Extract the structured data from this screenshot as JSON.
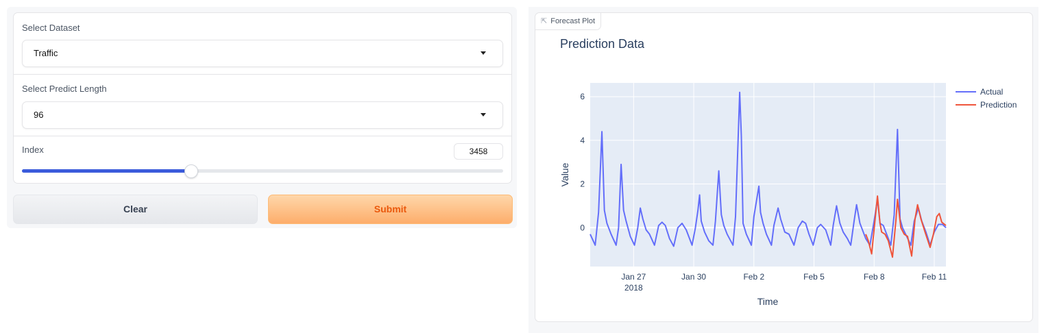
{
  "form": {
    "dataset": {
      "label": "Select Dataset",
      "value": "Traffic"
    },
    "predict_length": {
      "label": "Select Predict Length",
      "value": "96"
    },
    "index": {
      "label": "Index",
      "value": "3458",
      "slider_fraction": 0.35
    },
    "clear_label": "Clear",
    "submit_label": "Submit"
  },
  "plot_panel": {
    "tab_label": "Forecast Plot",
    "icon": "chart-icon"
  },
  "colors": {
    "accent": "#3b5bdb",
    "submit_text": "#ea580c",
    "actual": "#636efa",
    "prediction": "#ef553b",
    "plot_bg": "#e5ecf6"
  },
  "chart_data": {
    "type": "line",
    "title": "Prediction Data",
    "xlabel": "Time",
    "ylabel": "Value",
    "xlim": [
      "2018-01-24 20:00",
      "2018-02-11 14:00"
    ],
    "ylim": [
      -1.78,
      6.63
    ],
    "x_ticks": [
      {
        "date": "2018-01-27 00:00",
        "label": "Jan 27",
        "sublabel": "2018"
      },
      {
        "date": "2018-01-30 00:00",
        "label": "Jan 30"
      },
      {
        "date": "2018-02-02 00:00",
        "label": "Feb 2"
      },
      {
        "date": "2018-02-05 00:00",
        "label": "Feb 5"
      },
      {
        "date": "2018-02-08 00:00",
        "label": "Feb 8"
      },
      {
        "date": "2018-02-11 00:00",
        "label": "Feb 11"
      }
    ],
    "y_ticks": [
      0,
      2,
      4,
      6
    ],
    "grid": true,
    "legend": "top-right",
    "series": [
      {
        "name": "Actual",
        "color": "#636efa",
        "points": [
          [
            "2018-01-24 20:00",
            -0.3
          ],
          [
            "2018-01-25 02:00",
            -0.8
          ],
          [
            "2018-01-25 06:00",
            0.7
          ],
          [
            "2018-01-25 10:00",
            4.4
          ],
          [
            "2018-01-25 13:00",
            0.8
          ],
          [
            "2018-01-25 16:00",
            0.2
          ],
          [
            "2018-01-25 21:00",
            -0.3
          ],
          [
            "2018-01-26 03:00",
            -0.8
          ],
          [
            "2018-01-26 06:00",
            0
          ],
          [
            "2018-01-26 09:00",
            2.9
          ],
          [
            "2018-01-26 12:00",
            0.8
          ],
          [
            "2018-01-26 15:00",
            0.3
          ],
          [
            "2018-01-26 20:00",
            -0.4
          ],
          [
            "2018-01-27 01:00",
            -0.8
          ],
          [
            "2018-01-27 05:00",
            0
          ],
          [
            "2018-01-27 08:00",
            0.9
          ],
          [
            "2018-01-27 11:00",
            0.4
          ],
          [
            "2018-01-27 15:00",
            -0.1
          ],
          [
            "2018-01-27 19:00",
            -0.3
          ],
          [
            "2018-01-28 01:00",
            -0.8
          ],
          [
            "2018-01-28 06:00",
            0.1
          ],
          [
            "2018-01-28 10:00",
            0.25
          ],
          [
            "2018-01-28 14:00",
            0.1
          ],
          [
            "2018-01-28 19:00",
            -0.5
          ],
          [
            "2018-01-29 00:00",
            -0.85
          ],
          [
            "2018-01-29 05:00",
            0
          ],
          [
            "2018-01-29 10:00",
            0.2
          ],
          [
            "2018-01-29 15:00",
            -0.1
          ],
          [
            "2018-01-29 22:00",
            -0.8
          ],
          [
            "2018-01-30 02:00",
            0
          ],
          [
            "2018-01-30 05:00",
            0.8
          ],
          [
            "2018-01-30 07:00",
            1.5
          ],
          [
            "2018-01-30 09:00",
            0.3
          ],
          [
            "2018-01-30 13:00",
            -0.2
          ],
          [
            "2018-01-30 18:00",
            -0.6
          ],
          [
            "2018-01-30 23:00",
            -0.8
          ],
          [
            "2018-01-31 02:00",
            0.3
          ],
          [
            "2018-01-31 06:00",
            2.6
          ],
          [
            "2018-01-31 09:00",
            0.6
          ],
          [
            "2018-01-31 12:00",
            0.1
          ],
          [
            "2018-01-31 16:00",
            -0.3
          ],
          [
            "2018-01-31 23:00",
            -0.8
          ],
          [
            "2018-02-01 02:00",
            0.5
          ],
          [
            "2018-02-01 07:00",
            6.2
          ],
          [
            "2018-02-01 09:00",
            4.2
          ],
          [
            "2018-02-01 11:00",
            0.2
          ],
          [
            "2018-02-01 15:00",
            -0.3
          ],
          [
            "2018-02-01 21:00",
            -0.8
          ],
          [
            "2018-02-02 00:00",
            0.5
          ],
          [
            "2018-02-02 06:00",
            1.9
          ],
          [
            "2018-02-02 08:00",
            0.7
          ],
          [
            "2018-02-02 11:00",
            0.2
          ],
          [
            "2018-02-02 15:00",
            -0.3
          ],
          [
            "2018-02-02 21:00",
            -0.8
          ],
          [
            "2018-02-03 00:00",
            0.1
          ],
          [
            "2018-02-03 05:00",
            0.9
          ],
          [
            "2018-02-03 08:00",
            0.4
          ],
          [
            "2018-02-03 13:00",
            -0.2
          ],
          [
            "2018-02-03 18:00",
            -0.3
          ],
          [
            "2018-02-04 00:00",
            -0.8
          ],
          [
            "2018-02-04 05:00",
            0
          ],
          [
            "2018-02-04 10:00",
            0.3
          ],
          [
            "2018-02-04 14:00",
            0.2
          ],
          [
            "2018-02-04 18:00",
            -0.3
          ],
          [
            "2018-02-04 23:00",
            -0.8
          ],
          [
            "2018-02-05 04:00",
            0
          ],
          [
            "2018-02-05 08:00",
            0.15
          ],
          [
            "2018-02-05 14:00",
            -0.1
          ],
          [
            "2018-02-05 20:00",
            -0.8
          ],
          [
            "2018-02-05 23:00",
            0.1
          ],
          [
            "2018-02-06 03:00",
            1.0
          ],
          [
            "2018-02-06 07:00",
            0.2
          ],
          [
            "2018-02-06 11:00",
            -0.2
          ],
          [
            "2018-02-06 16:00",
            -0.5
          ],
          [
            "2018-02-06 20:00",
            -0.8
          ],
          [
            "2018-02-07 00:00",
            0.3
          ],
          [
            "2018-02-07 03:00",
            1.05
          ],
          [
            "2018-02-07 07:00",
            0.2
          ],
          [
            "2018-02-07 14:00",
            -0.5
          ],
          [
            "2018-02-07 19:00",
            -0.8
          ],
          [
            "2018-02-08 00:00",
            0.3
          ],
          [
            "2018-02-08 04:00",
            1.3
          ],
          [
            "2018-02-08 07:00",
            0.2
          ],
          [
            "2018-02-08 11:00",
            0.1
          ],
          [
            "2018-02-08 15:00",
            -0.3
          ],
          [
            "2018-02-08 20:00",
            -0.8
          ],
          [
            "2018-02-09 00:00",
            0.6
          ],
          [
            "2018-02-09 04:00",
            4.5
          ],
          [
            "2018-02-09 07:00",
            0.4
          ],
          [
            "2018-02-09 10:00",
            0
          ],
          [
            "2018-02-09 15:00",
            -0.4
          ],
          [
            "2018-02-09 20:00",
            -0.8
          ],
          [
            "2018-02-10 00:00",
            0.3
          ],
          [
            "2018-02-10 05:00",
            0.9
          ],
          [
            "2018-02-10 09:00",
            0.3
          ],
          [
            "2018-02-10 14:00",
            -0.2
          ],
          [
            "2018-02-10 19:00",
            -0.8
          ],
          [
            "2018-02-11 00:00",
            -0.2
          ],
          [
            "2018-02-11 05:00",
            0.15
          ],
          [
            "2018-02-11 10:00",
            0.15
          ],
          [
            "2018-02-11 14:00",
            0.0
          ]
        ]
      },
      {
        "name": "Prediction",
        "color": "#ef553b",
        "points": [
          [
            "2018-02-07 14:00",
            -0.3
          ],
          [
            "2018-02-07 17:00",
            -0.6
          ],
          [
            "2018-02-07 21:00",
            -1.2
          ],
          [
            "2018-02-08 01:00",
            0.3
          ],
          [
            "2018-02-08 04:00",
            1.45
          ],
          [
            "2018-02-08 07:00",
            0.2
          ],
          [
            "2018-02-08 09:00",
            -0.2
          ],
          [
            "2018-02-08 13:00",
            -0.3
          ],
          [
            "2018-02-08 17:00",
            -0.6
          ],
          [
            "2018-02-08 22:00",
            -1.35
          ],
          [
            "2018-02-09 02:00",
            0.3
          ],
          [
            "2018-02-09 04:00",
            1.3
          ],
          [
            "2018-02-09 08:00",
            0
          ],
          [
            "2018-02-09 12:00",
            -0.3
          ],
          [
            "2018-02-09 16:00",
            -0.4
          ],
          [
            "2018-02-09 21:00",
            -1.3
          ],
          [
            "2018-02-10 01:00",
            0.4
          ],
          [
            "2018-02-10 04:00",
            1.05
          ],
          [
            "2018-02-10 08:00",
            0.4
          ],
          [
            "2018-02-10 13:00",
            -0.2
          ],
          [
            "2018-02-10 19:00",
            -0.9
          ],
          [
            "2018-02-10 23:00",
            -0.3
          ],
          [
            "2018-02-11 03:00",
            0.5
          ],
          [
            "2018-02-11 06:00",
            0.65
          ],
          [
            "2018-02-11 09:00",
            0.25
          ],
          [
            "2018-02-11 14:00",
            0.1
          ]
        ]
      }
    ]
  }
}
